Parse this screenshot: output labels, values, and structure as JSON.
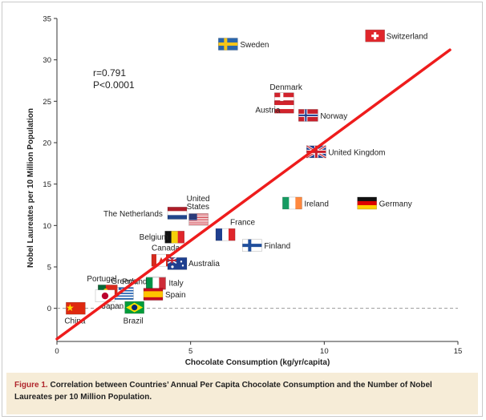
{
  "chart_data": {
    "type": "scatter",
    "title": "",
    "xlabel": "Chocolate Consumption (kg/yr/capita)",
    "ylabel": "Nobel Laureates per 10 Million Population",
    "xlim": [
      0,
      15
    ],
    "ylim": [
      -4,
      35
    ],
    "xticks": [
      0,
      5,
      10,
      15
    ],
    "yticks": [
      0,
      5,
      10,
      15,
      20,
      25,
      30,
      35
    ],
    "grid": false,
    "zero_line": "dashed",
    "stats": {
      "r": "r=0.791",
      "p": "P<0.0001"
    },
    "regression": {
      "x": [
        0,
        14.7
      ],
      "y": [
        -3.7,
        31.2
      ],
      "color": "#ee1c1c"
    },
    "points": [
      {
        "name": "Switzerland",
        "x": 11.9,
        "y": 32.9,
        "flag": "switzerland"
      },
      {
        "name": "Sweden",
        "x": 6.4,
        "y": 31.9,
        "flag": "sweden"
      },
      {
        "name": "Denmark",
        "x": 8.5,
        "y": 25.3,
        "flag": "denmark"
      },
      {
        "name": "Austria",
        "x": 8.5,
        "y": 24.3,
        "flag": "austria"
      },
      {
        "name": "Norway",
        "x": 9.4,
        "y": 23.3,
        "flag": "norway"
      },
      {
        "name": "United Kingdom",
        "x": 9.7,
        "y": 18.9,
        "flag": "uk"
      },
      {
        "name": "Ireland",
        "x": 8.8,
        "y": 12.7,
        "flag": "ireland"
      },
      {
        "name": "Germany",
        "x": 11.6,
        "y": 12.7,
        "flag": "germany"
      },
      {
        "name": "United States",
        "x": 5.3,
        "y": 10.7,
        "flag": "us"
      },
      {
        "name": "The Netherlands",
        "x": 4.5,
        "y": 11.5,
        "flag": "netherlands"
      },
      {
        "name": "France",
        "x": 6.3,
        "y": 8.9,
        "flag": "france"
      },
      {
        "name": "Finland",
        "x": 7.3,
        "y": 7.6,
        "flag": "finland"
      },
      {
        "name": "Belgium",
        "x": 4.4,
        "y": 8.6,
        "flag": "belgium"
      },
      {
        "name": "Canada",
        "x": 3.9,
        "y": 5.8,
        "flag": "canada"
      },
      {
        "name": "Australia",
        "x": 4.5,
        "y": 5.4,
        "flag": "australia"
      },
      {
        "name": "Poland",
        "x": 3.7,
        "y": 3.1,
        "flag": "poland"
      },
      {
        "name": "Italy",
        "x": 3.7,
        "y": 3.0,
        "flag": "italy"
      },
      {
        "name": "Spain",
        "x": 3.6,
        "y": 1.7,
        "flag": "spain"
      },
      {
        "name": "Greece",
        "x": 2.5,
        "y": 1.8,
        "flag": "greece"
      },
      {
        "name": "Portugal",
        "x": 1.9,
        "y": 2.1,
        "flag": "portugal"
      },
      {
        "name": "Japan",
        "x": 1.8,
        "y": 1.5,
        "flag": "japan"
      },
      {
        "name": "Brazil",
        "x": 2.9,
        "y": 0.1,
        "flag": "brazil"
      },
      {
        "name": "China",
        "x": 0.7,
        "y": 0.0,
        "flag": "china"
      }
    ]
  },
  "caption": {
    "label": "Figure 1.",
    "text": "Correlation between Countries’ Annual Per Capita Chocolate Consumption and the Number of Nobel Laureates per 10 Million Population."
  }
}
